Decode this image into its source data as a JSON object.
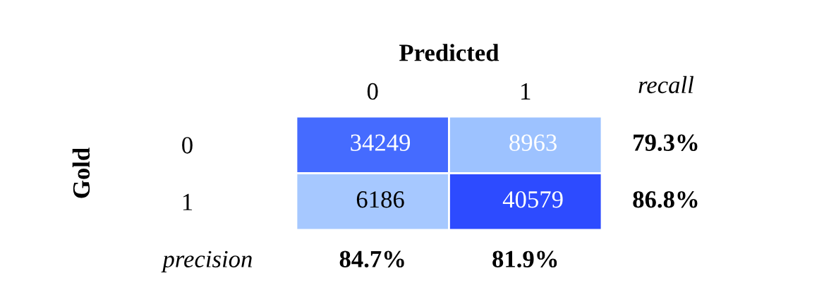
{
  "chart_data": {
    "type": "heatmap",
    "title": "Predicted",
    "ylabel": "Gold",
    "categories": [
      "0",
      "1"
    ],
    "y_categories": [
      "0",
      "1"
    ],
    "y2_categories": [
      "79.3%",
      "86.8%"
    ],
    "cells": [
      [
        34249,
        8963
      ],
      [
        6186,
        40579
      ]
    ],
    "data_labels": true,
    "annotations": [
      "recall",
      "precision",
      "84.7%",
      "81.9%"
    ]
  }
}
